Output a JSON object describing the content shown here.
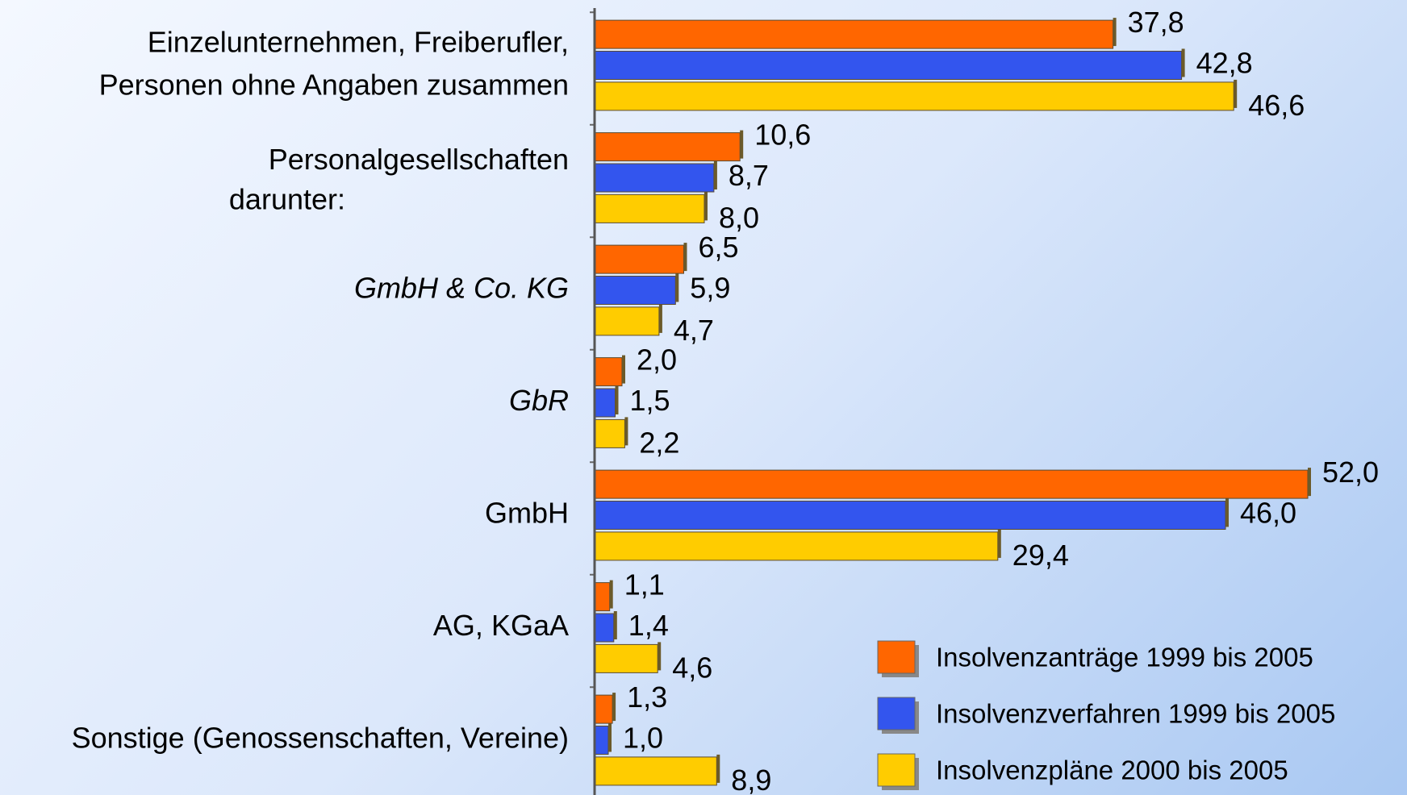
{
  "chart_data": {
    "type": "bar",
    "orientation": "horizontal",
    "categories": [
      [
        "Einzelunternehmen, Freiberufler,",
        "Personen ohne Angaben zusammen"
      ],
      [
        "Personalgesellschaften"
      ],
      [
        "GmbH & Co. KG"
      ],
      [
        "GbR"
      ],
      [
        "GmbH"
      ],
      [
        "AG, KGaA"
      ],
      [
        "Sonstige (Genossenschaften, Vereine)"
      ]
    ],
    "italic": [
      false,
      false,
      true,
      true,
      false,
      false,
      false
    ],
    "note": "darunter:",
    "xlim": [
      0,
      58
    ],
    "legend": "lower right",
    "series": [
      {
        "name": "Insolvenzanträge 1999 bis 2005",
        "color": "#ff6600",
        "values": [
          37.8,
          10.6,
          6.5,
          2.0,
          52.0,
          1.1,
          1.3
        ],
        "value_labels": [
          "37,8",
          "10,6",
          "6,5",
          "2,0",
          "52,0",
          "1,1",
          "1,3"
        ]
      },
      {
        "name": "Insolvenzverfahren 1999 bis 2005",
        "color": "#3355ee",
        "values": [
          42.8,
          8.7,
          5.9,
          1.5,
          46.0,
          1.4,
          1.0
        ],
        "value_labels": [
          "42,8",
          "8,7",
          "5,9",
          "1,5",
          "46,0",
          "1,4",
          "1,0"
        ]
      },
      {
        "name": "Insolvenzpläne 2000 bis 2005",
        "color": "#ffcc00",
        "values": [
          46.6,
          8.0,
          4.7,
          2.2,
          29.4,
          4.6,
          8.9
        ],
        "value_labels": [
          "46,6",
          "8,0",
          "4,7",
          "2,2",
          "29,4",
          "4,6",
          "8,9"
        ]
      }
    ]
  }
}
